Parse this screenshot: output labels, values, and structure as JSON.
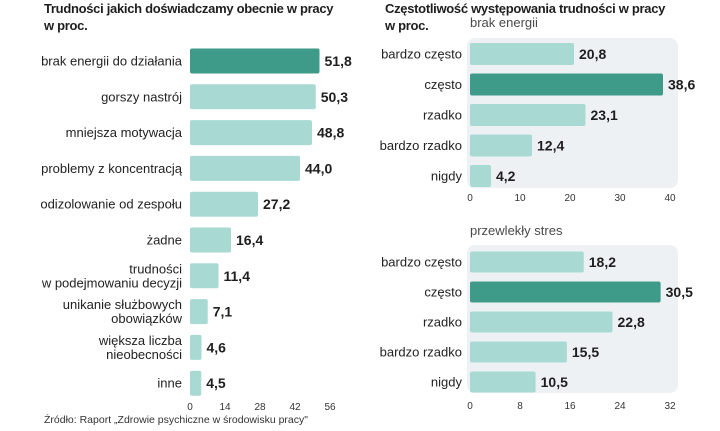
{
  "colors": {
    "highlight": "#3e9b8a",
    "bar": "#a8dad3",
    "panel_bg": "#eef1f4",
    "value_text": "#1e1e1e"
  },
  "source": "Źródło: Raport „Zdrowie psychiczne  w środowisku pracy\"",
  "chart_data": [
    {
      "type": "bar",
      "orientation": "horizontal",
      "title": "Trudności jakich doświadczamy obecnie w pracy",
      "subtitle": "w proc.",
      "categories": [
        "brak energii do działania",
        "gorszy nastrój",
        "mniejsza motywacja",
        "problemy z koncentracją",
        "odizolowanie od zespołu",
        "żadne",
        "trudności\nw podejmowaniu decyzji",
        "unikanie służbowych\nobowiązków",
        "większa liczba\nnieobecności",
        "inne"
      ],
      "values": [
        51.8,
        50.3,
        48.8,
        44.0,
        27.2,
        16.4,
        11.4,
        7.1,
        4.6,
        4.5
      ],
      "value_labels": [
        "51,8",
        "50,3",
        "48,8",
        "44,0",
        "27,2",
        "16,4",
        "11,4",
        "7,1",
        "4,6",
        "4,5"
      ],
      "highlight_index": 0,
      "xlim": [
        0,
        56
      ],
      "xticks": [
        "0",
        "14",
        "28",
        "42",
        "56"
      ],
      "grid": false
    },
    {
      "type": "bar",
      "orientation": "horizontal",
      "title": "Częstotliwość występowania trudności w pracy",
      "subtitle": "w proc.",
      "panel_title": "brak energii",
      "categories": [
        "bardzo często",
        "często",
        "rzadko",
        "bardzo rzadko",
        "nigdy"
      ],
      "values": [
        20.8,
        38.6,
        23.1,
        12.4,
        4.2
      ],
      "value_labels": [
        "20,8",
        "38,6",
        "23,1",
        "12,4",
        "4,2"
      ],
      "highlight_index": 1,
      "xlim": [
        0,
        40
      ],
      "xticks": [
        "0",
        "10",
        "20",
        "30",
        "40"
      ],
      "grid": false
    },
    {
      "type": "bar",
      "orientation": "horizontal",
      "panel_title": "przewlekły stres",
      "categories": [
        "bardzo często",
        "często",
        "rzadko",
        "bardzo rzadko",
        "nigdy"
      ],
      "values": [
        18.2,
        30.5,
        22.8,
        15.5,
        10.5
      ],
      "value_labels": [
        "18,2",
        "30,5",
        "22,8",
        "15,5",
        "10,5"
      ],
      "highlight_index": 1,
      "xlim": [
        0,
        32
      ],
      "xticks": [
        "0",
        "8",
        "16",
        "24",
        "32"
      ],
      "grid": false
    }
  ]
}
